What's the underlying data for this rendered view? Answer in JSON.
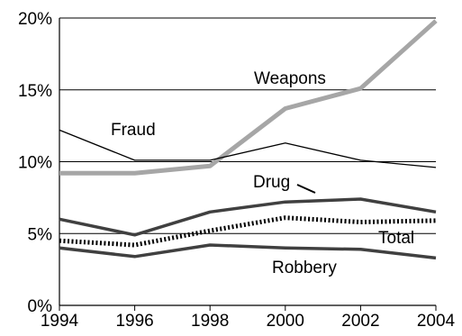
{
  "chart_data": {
    "type": "line",
    "x": [
      1994,
      1996,
      1998,
      2000,
      2002,
      2004
    ],
    "xlim": [
      1994,
      2004
    ],
    "ylim": [
      0,
      20
    ],
    "x_tick_labels": [
      "1994",
      "1996",
      "1998",
      "2000",
      "2002",
      "2004"
    ],
    "y_tick_labels": [
      "0%",
      "5%",
      "10%",
      "15%",
      "20%"
    ],
    "y_ticks": [
      0,
      5,
      10,
      15,
      20
    ],
    "grid": true,
    "legend": "none",
    "series": [
      {
        "name": "Weapons",
        "values": [
          9.2,
          9.2,
          9.7,
          13.7,
          15.1,
          19.8
        ],
        "color": "#a6a6a6",
        "style": "thick"
      },
      {
        "name": "Fraud",
        "values": [
          12.2,
          10.1,
          10.1,
          11.3,
          10.1,
          9.6
        ],
        "color": "#000000",
        "style": "thin"
      },
      {
        "name": "Drug",
        "values": [
          6.0,
          4.9,
          6.5,
          7.2,
          7.4,
          6.5
        ],
        "color": "#404040",
        "style": "medium"
      },
      {
        "name": "Total",
        "values": [
          4.5,
          4.2,
          5.2,
          6.1,
          5.8,
          5.9
        ],
        "color": "#000000",
        "style": "dotted"
      },
      {
        "name": "Robbery",
        "values": [
          4.0,
          3.4,
          4.2,
          4.0,
          3.9,
          3.3
        ],
        "color": "#404040",
        "style": "medium"
      }
    ]
  }
}
